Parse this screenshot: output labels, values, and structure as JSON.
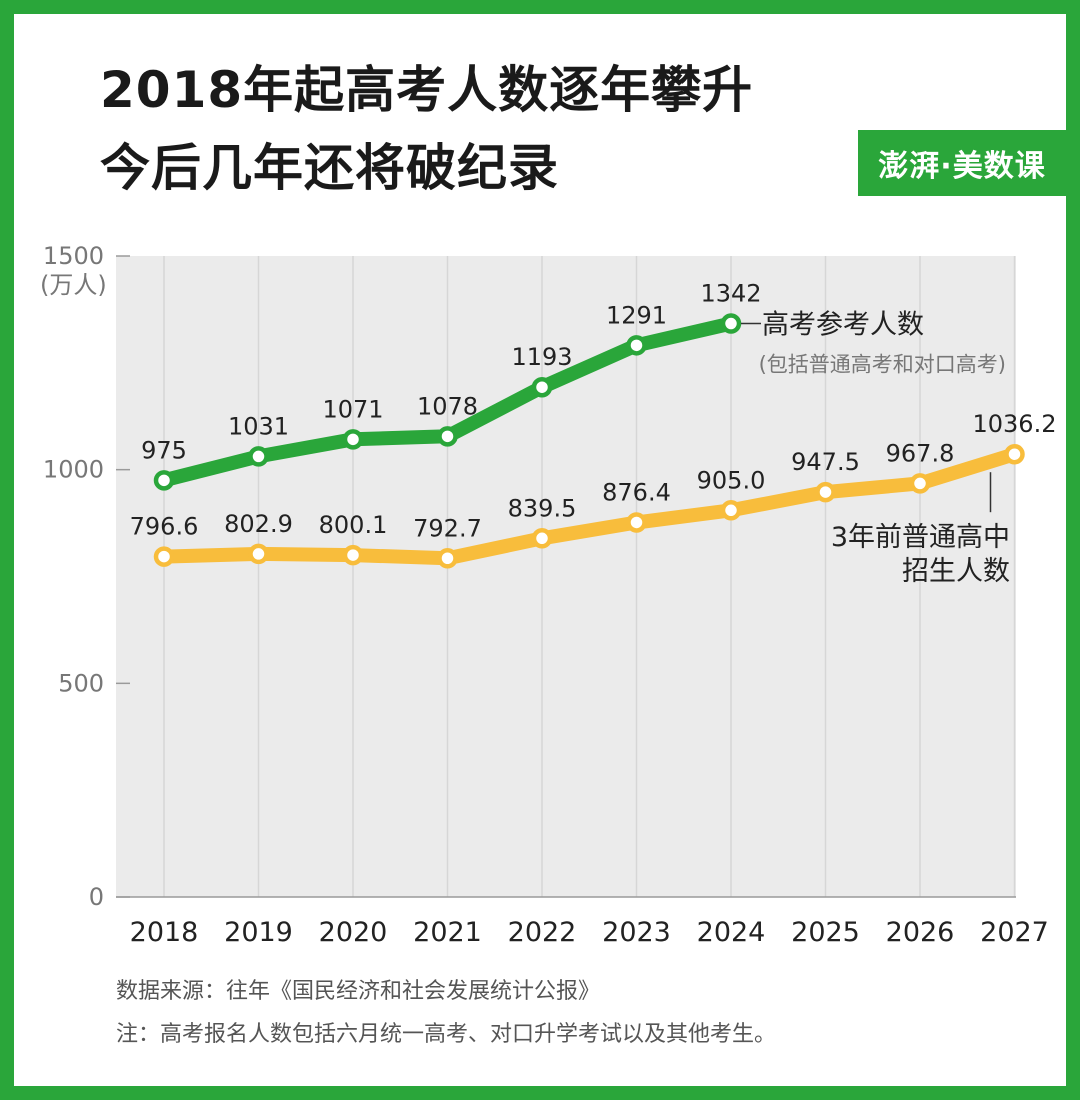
{
  "header": {
    "title_line1": "2018年起高考人数逐年攀升",
    "title_line2": "今后几年还将破纪录",
    "logo": "澎湃·美数课"
  },
  "colors": {
    "background_frame": "#2aa63a",
    "plot_bg": "#ebebeb",
    "series_exam": "#2aa63a",
    "series_highschool": "#f8bd3c"
  },
  "chart_data": {
    "type": "line",
    "title": "2018年起高考人数逐年攀升 今后几年还将破纪录",
    "x": [
      "2018",
      "2019",
      "2020",
      "2021",
      "2022",
      "2023",
      "2024",
      "2025",
      "2026",
      "2027"
    ],
    "y_unit": "(万人)",
    "ylim": [
      0,
      1500
    ],
    "yticks": [
      0,
      500,
      1000,
      1500
    ],
    "grid": "vertical",
    "series": [
      {
        "name": "高考参考人数",
        "sub_label": "(包括普通高考和对口高考)",
        "x": [
          "2018",
          "2019",
          "2020",
          "2021",
          "2022",
          "2023",
          "2024"
        ],
        "values": [
          975,
          1031,
          1071,
          1078,
          1193,
          1291,
          1342
        ],
        "labels": [
          "975",
          "1031",
          "1071",
          "1078",
          "1193",
          "1291",
          "1342"
        ],
        "color": "#2aa63a"
      },
      {
        "name": "3年前普通高中招生人数",
        "name_lines": [
          "3年前普通高中",
          "招生人数"
        ],
        "x": [
          "2018",
          "2019",
          "2020",
          "2021",
          "2022",
          "2023",
          "2024",
          "2025",
          "2026",
          "2027"
        ],
        "values": [
          796.6,
          802.9,
          800.1,
          792.7,
          839.5,
          876.4,
          905.0,
          947.5,
          967.8,
          1036.2
        ],
        "labels": [
          "796.6",
          "802.9",
          "800.1",
          "792.7",
          "839.5",
          "876.4",
          "905.0",
          "947.5",
          "967.8",
          "1036.2"
        ],
        "color": "#f8bd3c"
      }
    ]
  },
  "footer": {
    "source": "数据来源：往年《国民经济和社会发展统计公报》",
    "note": "注：高考报名人数包括六月统一高考、对口升学考试以及其他考生。"
  }
}
